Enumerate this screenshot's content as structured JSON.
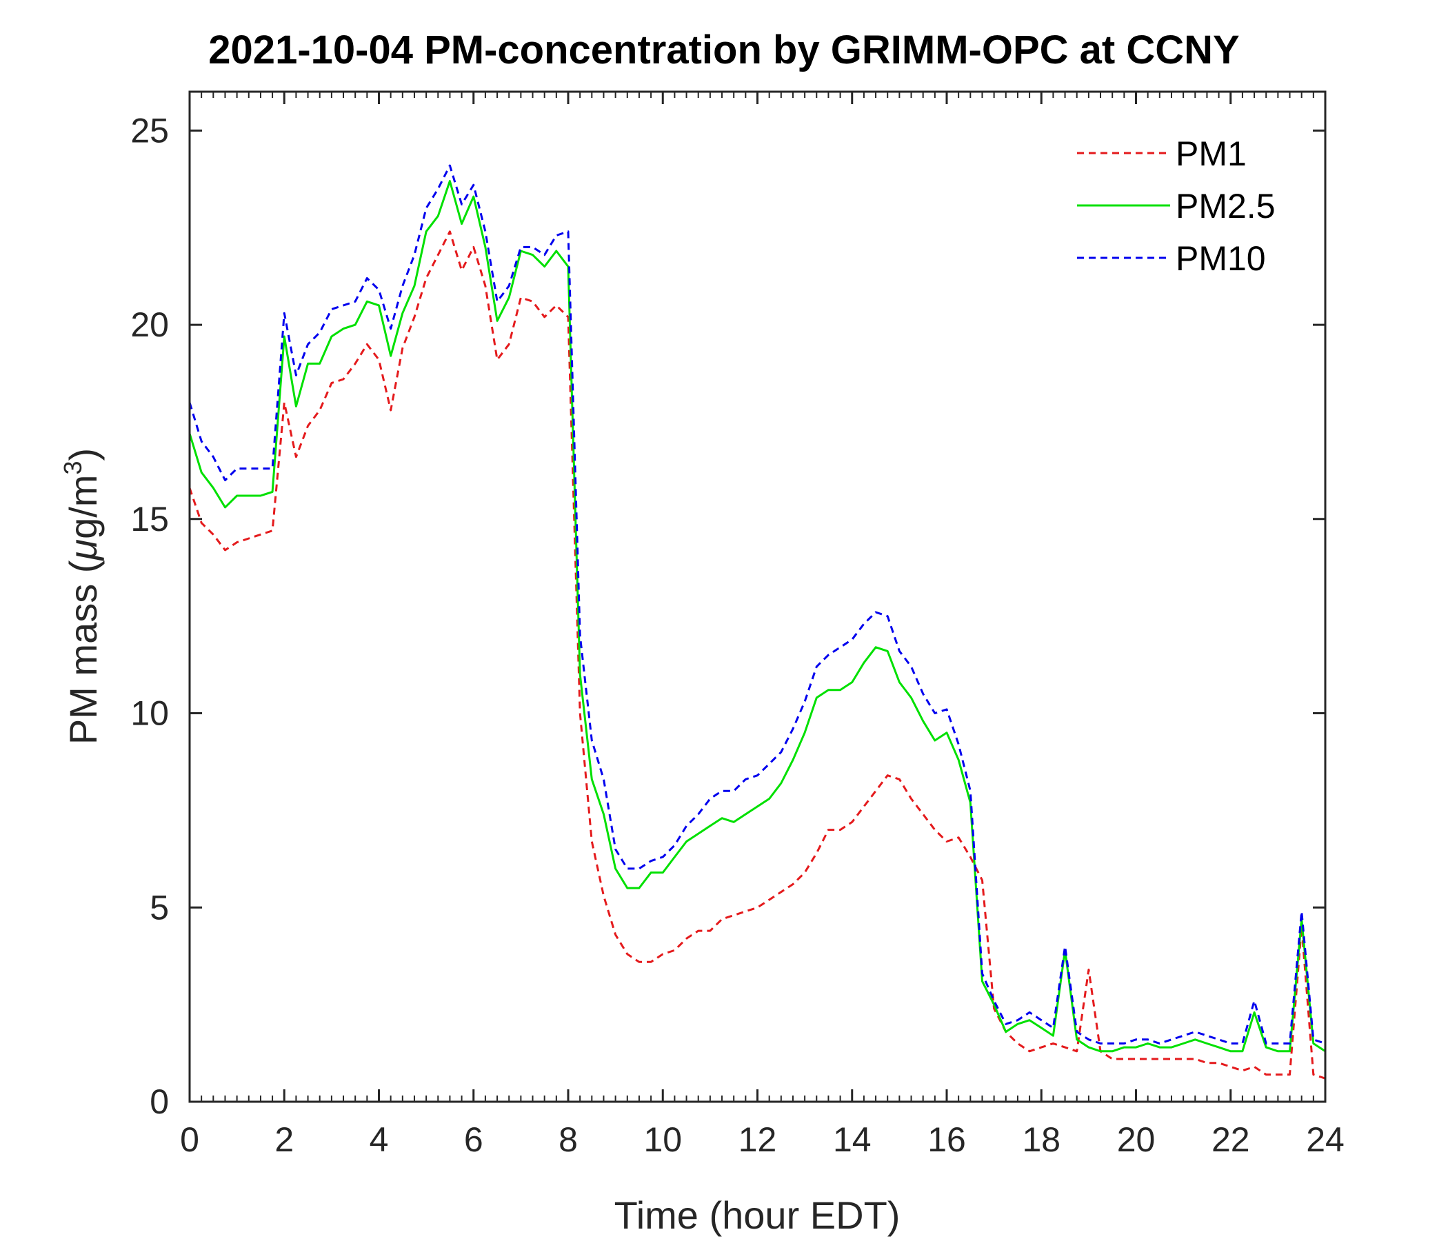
{
  "chart_data": {
    "type": "line",
    "title": "2021-10-04 PM-concentration by GRIMM-OPC at CCNY",
    "xlabel": "Time (hour EDT)",
    "ylabel_prefix": "PM mass (",
    "ylabel_mu": "μ",
    "ylabel_unit": "g/m",
    "ylabel_exp": "3",
    "ylabel_suffix": ")",
    "xlim": [
      0,
      24
    ],
    "ylim": [
      0,
      26
    ],
    "xticks": [
      "0",
      "2",
      "4",
      "6",
      "8",
      "10",
      "12",
      "14",
      "16",
      "18",
      "20",
      "22",
      "24"
    ],
    "yticks": [
      "0",
      "5",
      "10",
      "15",
      "20",
      "25"
    ],
    "grid": false,
    "legend_position": "top-right",
    "x": [
      0,
      0.25,
      0.5,
      0.75,
      1,
      1.25,
      1.5,
      1.75,
      2,
      2.25,
      2.5,
      2.75,
      3,
      3.25,
      3.5,
      3.75,
      4,
      4.25,
      4.5,
      4.75,
      5,
      5.25,
      5.5,
      5.75,
      6,
      6.25,
      6.5,
      6.75,
      7,
      7.25,
      7.5,
      7.75,
      8,
      8.25,
      8.5,
      8.75,
      9,
      9.25,
      9.5,
      9.75,
      10,
      10.25,
      10.5,
      10.75,
      11,
      11.25,
      11.5,
      11.75,
      12,
      12.25,
      12.5,
      12.75,
      13,
      13.25,
      13.5,
      13.75,
      14,
      14.25,
      14.5,
      14.75,
      15,
      15.25,
      15.5,
      15.75,
      16,
      16.25,
      16.5,
      16.75,
      17,
      17.25,
      17.5,
      17.75,
      18,
      18.25,
      18.5,
      18.75,
      19,
      19.25,
      19.5,
      19.75,
      20,
      20.25,
      20.5,
      20.75,
      21,
      21.25,
      21.5,
      21.75,
      22,
      22.25,
      22.5,
      22.75,
      23,
      23.25,
      23.5,
      23.75,
      24
    ],
    "series": [
      {
        "name": "PM1",
        "color": "#e41a1c",
        "style": "dashed",
        "values": [
          15.8,
          14.9,
          14.6,
          14.2,
          14.4,
          14.5,
          14.6,
          14.7,
          18.0,
          16.6,
          17.4,
          17.8,
          18.5,
          18.6,
          19.0,
          19.5,
          19.1,
          17.8,
          19.4,
          20.2,
          21.2,
          21.8,
          22.4,
          21.4,
          22.0,
          21.0,
          19.1,
          19.5,
          20.7,
          20.6,
          20.2,
          20.5,
          20.2,
          10.0,
          6.7,
          5.3,
          4.3,
          3.8,
          3.6,
          3.6,
          3.8,
          3.9,
          4.2,
          4.4,
          4.4,
          4.7,
          4.8,
          4.9,
          5.0,
          5.2,
          5.4,
          5.6,
          5.9,
          6.4,
          7.0,
          7.0,
          7.2,
          7.6,
          8.0,
          8.4,
          8.3,
          7.8,
          7.4,
          7.0,
          6.7,
          6.8,
          6.3,
          5.7,
          2.4,
          1.8,
          1.5,
          1.3,
          1.4,
          1.5,
          1.4,
          1.3,
          3.4,
          1.3,
          1.1,
          1.1,
          1.1,
          1.1,
          1.1,
          1.1,
          1.1,
          1.1,
          1.0,
          1.0,
          0.9,
          0.8,
          0.9,
          0.7,
          0.7,
          0.7,
          4.5,
          0.7,
          0.6
        ]
      },
      {
        "name": "PM2.5",
        "color": "#00e000",
        "style": "solid",
        "values": [
          17.2,
          16.2,
          15.8,
          15.3,
          15.6,
          15.6,
          15.6,
          15.7,
          19.7,
          17.9,
          19.0,
          19.0,
          19.7,
          19.9,
          20.0,
          20.6,
          20.5,
          19.2,
          20.3,
          21.0,
          22.4,
          22.8,
          23.7,
          22.6,
          23.3,
          22.0,
          20.1,
          20.7,
          21.9,
          21.8,
          21.5,
          21.9,
          21.5,
          11.0,
          8.3,
          7.4,
          6.0,
          5.5,
          5.5,
          5.9,
          5.9,
          6.3,
          6.7,
          6.9,
          7.1,
          7.3,
          7.2,
          7.4,
          7.6,
          7.8,
          8.2,
          8.8,
          9.5,
          10.4,
          10.6,
          10.6,
          10.8,
          11.3,
          11.7,
          11.6,
          10.8,
          10.4,
          9.8,
          9.3,
          9.5,
          8.8,
          7.7,
          3.1,
          2.5,
          1.8,
          2.0,
          2.1,
          1.9,
          1.7,
          3.9,
          1.6,
          1.4,
          1.3,
          1.3,
          1.4,
          1.4,
          1.5,
          1.4,
          1.4,
          1.5,
          1.6,
          1.5,
          1.4,
          1.3,
          1.3,
          2.3,
          1.4,
          1.3,
          1.3,
          4.7,
          1.5,
          1.3
        ]
      },
      {
        "name": "PM10",
        "color": "#0000ee",
        "style": "dashed",
        "values": [
          18.0,
          17.0,
          16.6,
          16.0,
          16.3,
          16.3,
          16.3,
          16.3,
          20.3,
          18.7,
          19.5,
          19.8,
          20.4,
          20.5,
          20.6,
          21.2,
          20.9,
          19.9,
          21.0,
          21.8,
          23.0,
          23.5,
          24.1,
          23.1,
          23.6,
          22.4,
          20.6,
          21.0,
          22.0,
          22.0,
          21.8,
          22.3,
          22.4,
          12.0,
          9.3,
          8.3,
          6.5,
          6.0,
          6.0,
          6.2,
          6.3,
          6.6,
          7.1,
          7.4,
          7.8,
          8.0,
          8.0,
          8.3,
          8.4,
          8.7,
          9.0,
          9.6,
          10.3,
          11.2,
          11.5,
          11.7,
          11.9,
          12.3,
          12.6,
          12.5,
          11.6,
          11.2,
          10.5,
          10.0,
          10.1,
          9.2,
          8.0,
          3.3,
          2.6,
          2.0,
          2.1,
          2.3,
          2.1,
          1.9,
          4.0,
          1.8,
          1.6,
          1.5,
          1.5,
          1.5,
          1.6,
          1.6,
          1.5,
          1.6,
          1.7,
          1.8,
          1.7,
          1.6,
          1.5,
          1.5,
          2.6,
          1.5,
          1.5,
          1.5,
          4.9,
          1.6,
          1.5
        ]
      }
    ]
  }
}
